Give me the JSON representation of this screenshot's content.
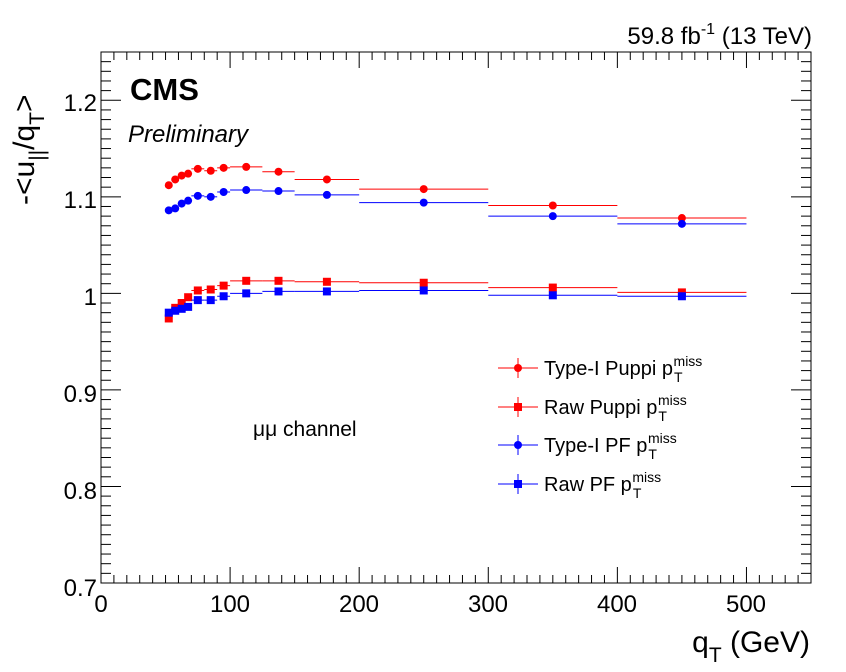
{
  "header": {
    "lumi_value": "59.8 fb",
    "lumi_exp": "-1",
    "energy": " (13 TeV)",
    "experiment": "CMS",
    "status": "Preliminary",
    "channel": "μμ channel"
  },
  "axes": {
    "x_main": "q",
    "x_sub": "T",
    "x_unit": " (GeV)",
    "y_prefix": "-<u",
    "y_sub1": "||",
    "y_mid": "/q",
    "y_sub2": "T",
    "y_suffix": ">"
  },
  "legend_sup": "miss",
  "legend_sub": "T",
  "colors": {
    "red": "#ff0000",
    "blue": "#0000ff",
    "axis": "#000000"
  },
  "chart_data": {
    "type": "scatter",
    "xlim": [
      0,
      550
    ],
    "ylim": [
      0.7,
      1.25
    ],
    "x_ticks": [
      "0",
      "100",
      "200",
      "300",
      "400",
      "500"
    ],
    "y_ticks": [
      "0.7",
      "0.8",
      "0.9",
      "1",
      "1.1",
      "1.2"
    ],
    "y_tick_values": [
      0.7,
      0.8,
      0.9,
      1.0,
      1.1,
      1.2
    ],
    "x_tick_values": [
      0,
      100,
      200,
      300,
      400,
      500
    ],
    "bins": [
      [
        50,
        55
      ],
      [
        55,
        60
      ],
      [
        60,
        65
      ],
      [
        65,
        70
      ],
      [
        70,
        80
      ],
      [
        80,
        90
      ],
      [
        90,
        100
      ],
      [
        100,
        125
      ],
      [
        125,
        150
      ],
      [
        150,
        200
      ],
      [
        200,
        300
      ],
      [
        300,
        400
      ],
      [
        400,
        500
      ]
    ],
    "series": [
      {
        "name": "Type-I Puppi p",
        "color": "#ff0000",
        "marker": "circle",
        "values": [
          1.112,
          1.118,
          1.122,
          1.124,
          1.129,
          1.127,
          1.13,
          1.131,
          1.126,
          1.118,
          1.108,
          1.091,
          1.078
        ]
      },
      {
        "name": "Raw Puppi p",
        "color": "#ff0000",
        "marker": "square",
        "values": [
          0.974,
          0.985,
          0.99,
          0.996,
          1.003,
          1.004,
          1.008,
          1.013,
          1.013,
          1.012,
          1.011,
          1.006,
          1.001
        ]
      },
      {
        "name": "Type-I PF p",
        "color": "#0000ff",
        "marker": "circle",
        "values": [
          1.086,
          1.088,
          1.093,
          1.096,
          1.101,
          1.1,
          1.105,
          1.107,
          1.106,
          1.102,
          1.094,
          1.08,
          1.072
        ]
      },
      {
        "name": "Raw PF p",
        "color": "#0000ff",
        "marker": "square",
        "values": [
          0.98,
          0.982,
          0.984,
          0.986,
          0.993,
          0.993,
          0.997,
          1.0,
          1.002,
          1.002,
          1.003,
          0.998,
          0.997
        ]
      }
    ]
  }
}
